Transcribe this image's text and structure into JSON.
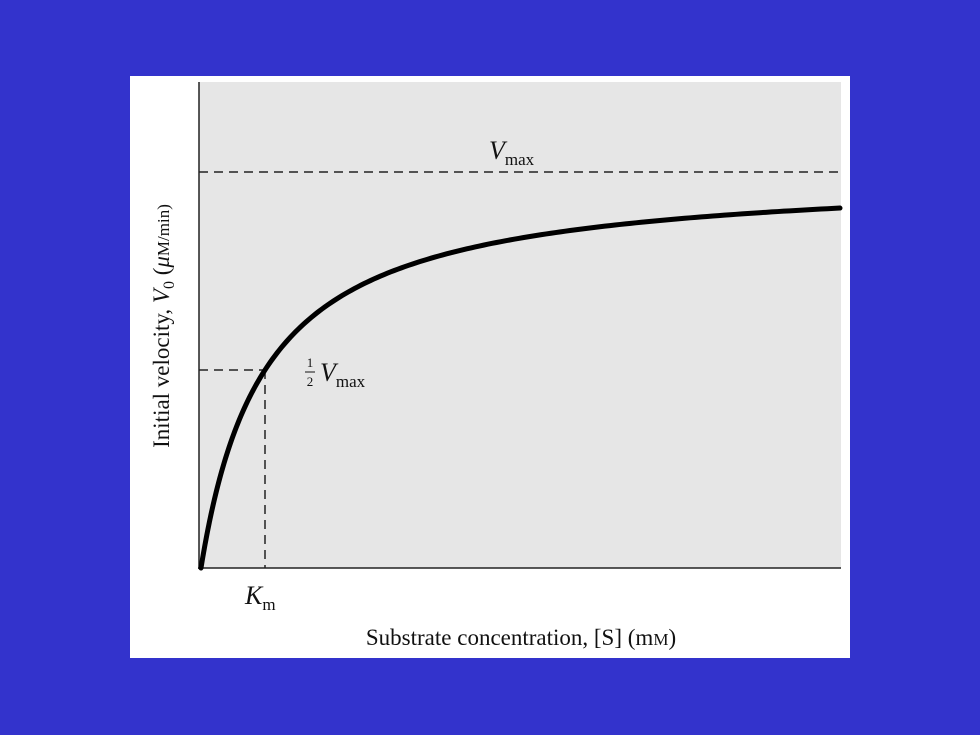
{
  "diagram": {
    "y_axis_title": {
      "text": "Initial velocity, ",
      "symbol": "V",
      "subscript": "0",
      "unit_open": " (",
      "unit_mu": "μ",
      "unit_rest": "M/min)"
    },
    "x_axis_title": {
      "text": "Substrate concentration, [S] (m",
      "unit_m": "M",
      "close": ")"
    },
    "vmax_label": {
      "symbol": "V",
      "subscript": "max"
    },
    "half_vmax_label": {
      "numerator": "1",
      "denominator": "2",
      "symbol": "V",
      "subscript": "max"
    },
    "km_label": {
      "symbol": "K",
      "subscript": "m"
    }
  }
}
